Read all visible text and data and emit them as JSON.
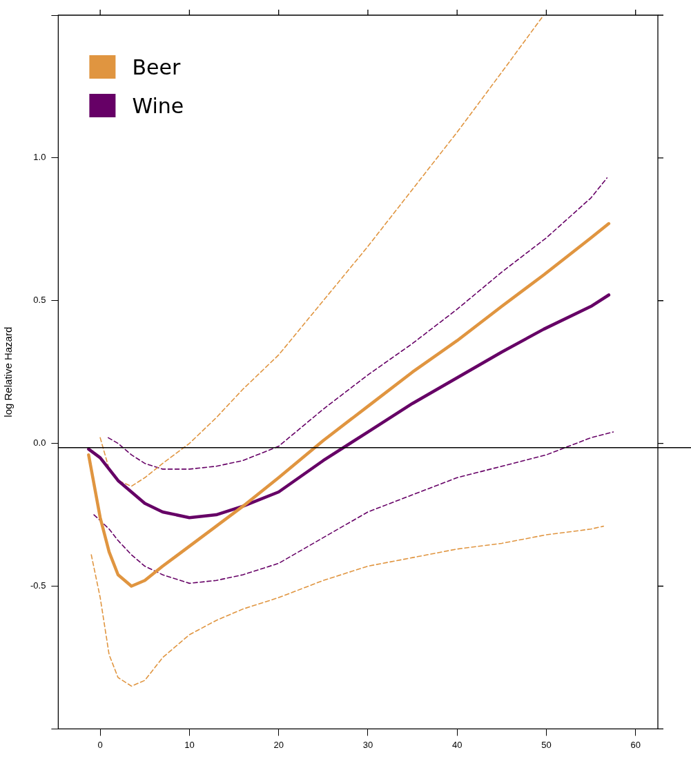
{
  "chart_data": {
    "type": "line",
    "ylabel": "log Relative Hazard",
    "x": [
      -1.3,
      0,
      1,
      2,
      3.5,
      5,
      7,
      10,
      13,
      16,
      20,
      25,
      30,
      35,
      40,
      45,
      49.7,
      55,
      57
    ],
    "series": [
      {
        "name": "Beer",
        "color": "#e09540",
        "values": [
          -0.04,
          -0.26,
          -0.38,
          -0.46,
          -0.5,
          -0.48,
          -0.43,
          -0.36,
          -0.29,
          -0.22,
          -0.12,
          0.01,
          0.13,
          0.25,
          0.36,
          0.48,
          0.59,
          0.72,
          0.77
        ]
      },
      {
        "name": "Wine",
        "color": "#660066",
        "values": [
          -0.02,
          -0.05,
          -0.09,
          -0.13,
          -0.17,
          -0.21,
          -0.24,
          -0.26,
          -0.25,
          -0.22,
          -0.17,
          -0.06,
          0.04,
          0.14,
          0.23,
          0.32,
          0.4,
          0.48,
          0.52
        ]
      },
      {
        "color": "#e09540",
        "line_style": "dashed",
        "x": [
          -1.0,
          0,
          1,
          2,
          3.5,
          5,
          7,
          10,
          13,
          16,
          20,
          25,
          30,
          35,
          40,
          45,
          50,
          55,
          56.4
        ],
        "values": [
          -0.39,
          -0.54,
          -0.74,
          -0.82,
          -0.85,
          -0.83,
          -0.75,
          -0.67,
          -0.62,
          -0.58,
          -0.54,
          -0.48,
          -0.43,
          -0.4,
          -0.37,
          -0.35,
          -0.32,
          -0.3,
          -0.29
        ]
      },
      {
        "color": "#e09540",
        "line_style": "dashed",
        "x": [
          0,
          1,
          2,
          3.5,
          5,
          7,
          10,
          13,
          16,
          20,
          25,
          30,
          35,
          40,
          45,
          49.7
        ],
        "values": [
          0.02,
          -0.09,
          -0.13,
          -0.15,
          -0.12,
          -0.07,
          0.0,
          0.09,
          0.19,
          0.31,
          0.5,
          0.69,
          0.89,
          1.09,
          1.3,
          1.5
        ]
      },
      {
        "color": "#660066",
        "line_style": "dashed",
        "x": [
          -0.7,
          0,
          1,
          2,
          3.5,
          5,
          7,
          10,
          13,
          16,
          20,
          25,
          30,
          35,
          40,
          45,
          50,
          55,
          57.5
        ],
        "values": [
          -0.25,
          -0.27,
          -0.3,
          -0.34,
          -0.39,
          -0.43,
          -0.46,
          -0.49,
          -0.48,
          -0.46,
          -0.42,
          -0.33,
          -0.24,
          -0.18,
          -0.12,
          -0.08,
          -0.04,
          0.02,
          0.04
        ]
      },
      {
        "color": "#660066",
        "line_style": "dashed",
        "x": [
          0.9,
          2,
          3.5,
          5,
          7,
          10,
          13,
          16,
          20,
          25,
          30,
          35,
          40,
          45,
          50,
          55,
          56.8
        ],
        "values": [
          0.02,
          0.0,
          -0.04,
          -0.07,
          -0.09,
          -0.09,
          -0.08,
          -0.06,
          -0.01,
          0.12,
          0.24,
          0.35,
          0.47,
          0.6,
          0.72,
          0.86,
          0.93
        ]
      }
    ],
    "xlim": [
      -4.7,
      62.5
    ],
    "xticks": [
      0,
      10,
      20,
      30,
      40,
      50,
      60
    ],
    "ylim": [
      -1,
      1.5
    ],
    "yticks": [
      {
        "value": -1,
        "label": null
      },
      {
        "value": -0.5,
        "label": "-0.5"
      },
      {
        "value": 0,
        "label": "0.0"
      },
      {
        "value": 0.5,
        "label": "0.5"
      },
      {
        "value": 1,
        "label": "1.0"
      },
      {
        "value": 1.5,
        "label": null
      }
    ],
    "ref_lines": [
      {
        "axis": "y",
        "value": -0.015,
        "color": "#000000"
      }
    ],
    "legend": "top left",
    "grid": false,
    "marker": "none",
    "line_style": "solid"
  }
}
